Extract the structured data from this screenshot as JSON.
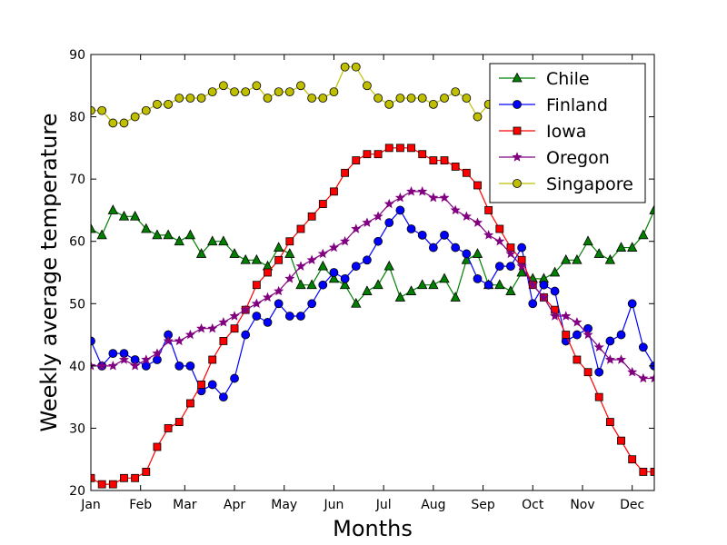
{
  "chart_data": {
    "type": "line",
    "title": "",
    "xlabel": "Months",
    "ylabel": "Weekly average temperature",
    "xlim": [
      1,
      52
    ],
    "ylim": [
      20,
      90
    ],
    "yticks": [
      20,
      30,
      40,
      50,
      60,
      70,
      80,
      90
    ],
    "xticks": [
      {
        "week": 1,
        "label": "Jan"
      },
      {
        "week": 5.5,
        "label": "Feb"
      },
      {
        "week": 9.5,
        "label": "Mar"
      },
      {
        "week": 14,
        "label": "Apr"
      },
      {
        "week": 18.5,
        "label": "May"
      },
      {
        "week": 23,
        "label": "Jun"
      },
      {
        "week": 27.5,
        "label": "Jul"
      },
      {
        "week": 32,
        "label": "Aug"
      },
      {
        "week": 36.5,
        "label": "Sep"
      },
      {
        "week": 41,
        "label": "Oct"
      },
      {
        "week": 45.5,
        "label": "Nov"
      },
      {
        "week": 50,
        "label": "Dec"
      }
    ],
    "grid": false,
    "legend": "top-right",
    "series": [
      {
        "name": "Chile",
        "color": "#007f00",
        "marker": "triangle",
        "values": [
          62,
          61,
          65,
          64,
          64,
          62,
          61,
          61,
          60,
          61,
          58,
          60,
          60,
          58,
          57,
          57,
          56,
          59,
          58,
          53,
          53,
          56,
          54,
          53,
          50,
          52,
          53,
          56,
          51,
          52,
          53,
          53,
          54,
          51,
          57,
          58,
          53,
          53,
          52,
          55,
          54,
          54,
          55,
          57,
          57,
          60,
          58,
          57,
          59,
          59,
          61,
          65,
          64
        ]
      },
      {
        "name": "Finland",
        "color": "#0000ff",
        "marker": "circle",
        "values": [
          44,
          40,
          42,
          42,
          41,
          40,
          41,
          45,
          40,
          40,
          36,
          37,
          35,
          38,
          45,
          48,
          47,
          50,
          48,
          48,
          50,
          53,
          55,
          54,
          56,
          57,
          60,
          63,
          65,
          62,
          61,
          59,
          61,
          59,
          58,
          54,
          53,
          56,
          56,
          59,
          50,
          53,
          52,
          44,
          45,
          46,
          39,
          44,
          45,
          50,
          43,
          40,
          43
        ]
      },
      {
        "name": "Iowa",
        "color": "#ff0000",
        "marker": "square",
        "values": [
          22,
          21,
          21,
          22,
          22,
          23,
          27,
          30,
          31,
          34,
          37,
          41,
          44,
          46,
          49,
          53,
          55,
          57,
          60,
          62,
          64,
          66,
          68,
          71,
          73,
          74,
          74,
          75,
          75,
          75,
          74,
          73,
          73,
          72,
          71,
          69,
          65,
          62,
          59,
          57,
          53,
          51,
          49,
          45,
          41,
          39,
          35,
          31,
          28,
          25,
          23,
          23,
          22
        ]
      },
      {
        "name": "Oregon",
        "color": "#800080",
        "marker": "star",
        "values": [
          40,
          40,
          40,
          41,
          40,
          41,
          42,
          44,
          44,
          45,
          46,
          46,
          47,
          48,
          49,
          50,
          51,
          52,
          54,
          56,
          57,
          58,
          59,
          60,
          62,
          63,
          64,
          66,
          67,
          68,
          68,
          67,
          67,
          65,
          64,
          63,
          61,
          60,
          58,
          56,
          53,
          51,
          48,
          48,
          47,
          45,
          43,
          41,
          41,
          39,
          38,
          38,
          39
        ]
      },
      {
        "name": "Singapore",
        "color": "#bfbf00",
        "marker": "circle",
        "values": [
          81,
          81,
          79,
          79,
          80,
          81,
          82,
          82,
          83,
          83,
          83,
          84,
          85,
          84,
          84,
          85,
          83,
          84,
          84,
          85,
          83,
          83,
          84,
          88,
          88,
          85,
          83,
          82,
          83,
          83,
          83,
          82,
          83,
          84,
          83,
          80,
          82,
          85
        ]
      }
    ]
  }
}
